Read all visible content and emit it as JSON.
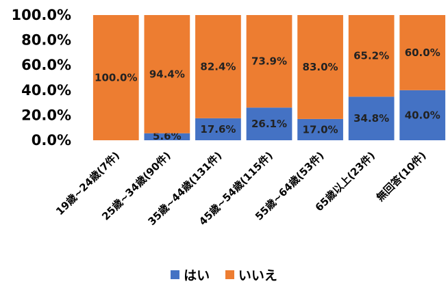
{
  "chart_data": {
    "type": "bar",
    "stacked": true,
    "categories": [
      "19歳~24歳(7件)",
      "25歳~34歳(90件)",
      "35歳~44歳(131件)",
      "45歳~54歳(115件)",
      "55歳~64歳(53件)",
      "65歳以上(23件)",
      "無回答(10件)"
    ],
    "series": [
      {
        "name": "はい",
        "color": "#4472C4",
        "values": [
          0.0,
          5.6,
          17.6,
          26.1,
          17.0,
          34.8,
          40.0
        ],
        "labels": [
          "",
          "5.6%",
          "17.6%",
          "26.1%",
          "17.0%",
          "34.8%",
          "40.0%"
        ]
      },
      {
        "name": "いいえ",
        "color": "#ED7D31",
        "values": [
          100.0,
          94.4,
          82.4,
          73.9,
          83.0,
          65.2,
          60.0
        ],
        "labels": [
          "100.0%",
          "94.4%",
          "82.4%",
          "73.9%",
          "83.0%",
          "65.2%",
          "60.0%"
        ]
      }
    ],
    "yticks": [
      "0.0%",
      "20.0%",
      "40.0%",
      "60.0%",
      "80.0%",
      "100.0%"
    ],
    "ylim": [
      0,
      100
    ],
    "grid": false,
    "legend": "bottom"
  }
}
